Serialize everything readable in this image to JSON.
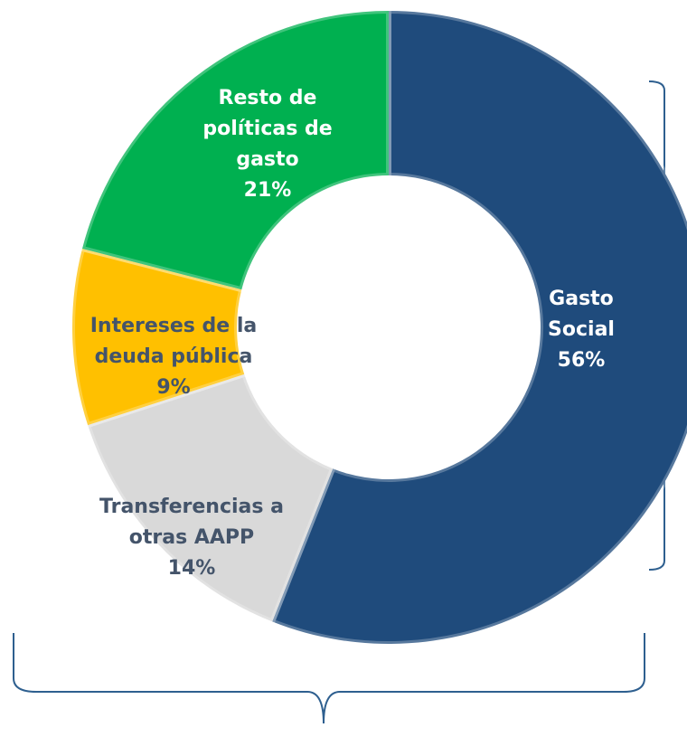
{
  "chart_data": {
    "type": "donut",
    "categories": [
      "Gasto Social",
      "Transferencias a otras AAPP",
      "Intereses de la deuda pública",
      "Resto de políticas de gasto"
    ],
    "values": [
      56,
      14,
      9,
      21
    ],
    "value_labels": [
      "56%",
      "14%",
      "9%",
      "21%"
    ],
    "colors": [
      "#1f4b7c",
      "#d9d9d9",
      "#ffc000",
      "#00b050"
    ]
  }
}
